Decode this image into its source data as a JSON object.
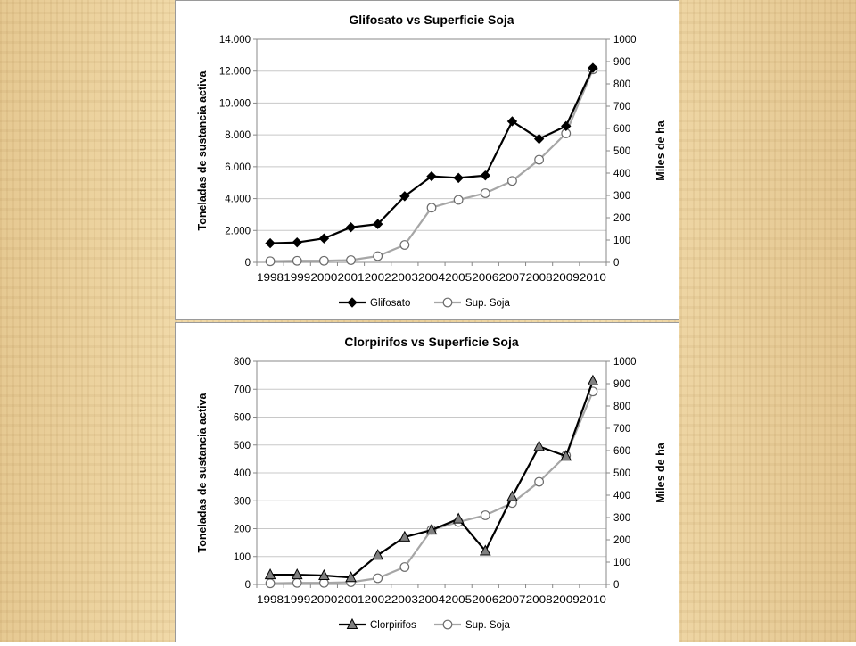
{
  "colors": {
    "primary_series": "#000000",
    "soja_line": "#a6a6a6",
    "triangle_fill": "#808080",
    "grid": "#c8c8c8",
    "background": "#f0d9a8"
  },
  "chart_data": [
    {
      "type": "line",
      "title": "Glifosato vs Superficie Soja",
      "ylabel": "Toneladas de sustancia activa",
      "y2label": "Miles de ha",
      "categories": [
        "1998",
        "1999",
        "2000",
        "2001",
        "2002",
        "2003",
        "2004",
        "2005",
        "2006",
        "2007",
        "2008",
        "2009",
        "2010"
      ],
      "ylim": [
        0,
        14000
      ],
      "y2lim": [
        0,
        1000
      ],
      "yticks": [
        "0",
        "2.000",
        "4.000",
        "6.000",
        "8.000",
        "10.000",
        "12.000",
        "14.000"
      ],
      "y2ticks": [
        "0",
        "100",
        "200",
        "300",
        "400",
        "500",
        "600",
        "700",
        "800",
        "900",
        "1000"
      ],
      "grid": true,
      "legend": "bottom",
      "series": [
        {
          "name": "Glifosato",
          "axis": "left",
          "marker": "diamond",
          "values": [
            1200,
            1250,
            1500,
            2200,
            2400,
            4150,
            5400,
            5300,
            5450,
            8850,
            7750,
            8550,
            12200
          ]
        },
        {
          "name": "Sup. Soja",
          "axis": "right",
          "marker": "circle",
          "values": [
            5,
            7,
            7,
            10,
            28,
            78,
            245,
            280,
            310,
            365,
            460,
            578,
            865
          ]
        }
      ]
    },
    {
      "type": "line",
      "title": "Clorpirifos vs Superficie Soja",
      "ylabel": "Toneladas de sustancia activa",
      "y2label": "Miles de ha",
      "categories": [
        "1998",
        "1999",
        "2000",
        "2001",
        "2002",
        "2003",
        "2004",
        "2005",
        "2006",
        "2007",
        "2008",
        "2009",
        "2010"
      ],
      "ylim": [
        0,
        800
      ],
      "y2lim": [
        0,
        1000
      ],
      "yticks": [
        "0",
        "100",
        "200",
        "300",
        "400",
        "500",
        "600",
        "700",
        "800"
      ],
      "y2ticks": [
        "0",
        "100",
        "200",
        "300",
        "400",
        "500",
        "600",
        "700",
        "800",
        "900",
        "1000"
      ],
      "grid": true,
      "legend": "bottom",
      "series": [
        {
          "name": "Clorpirifos",
          "axis": "left",
          "marker": "triangle",
          "values": [
            35,
            35,
            32,
            25,
            105,
            170,
            195,
            235,
            120,
            315,
            495,
            460,
            730
          ]
        },
        {
          "name": "Sup. Soja",
          "axis": "right",
          "marker": "circle",
          "values": [
            5,
            7,
            7,
            10,
            28,
            78,
            245,
            280,
            310,
            365,
            460,
            578,
            865
          ]
        }
      ]
    }
  ]
}
